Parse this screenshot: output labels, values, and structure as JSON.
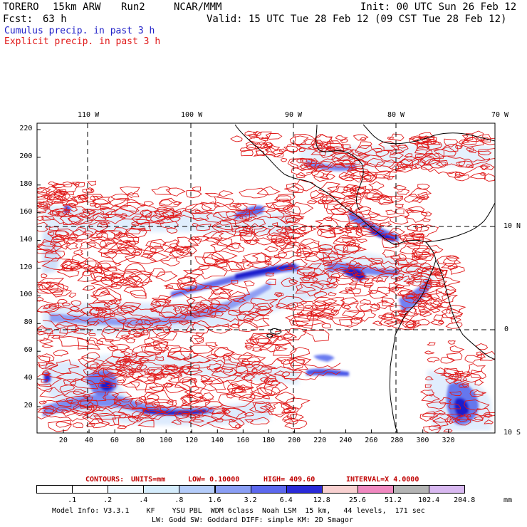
{
  "header": {
    "model": "TORERO",
    "resolution": "15km ARW",
    "run": "Run2",
    "org": "NCAR/MMM",
    "init": "Init: 00 UTC Sun 26 Feb 12",
    "fcst_label": "Fcst:",
    "fcst_value": "63 h",
    "valid": "Valid: 15 UTC Tue 28 Feb 12 (09 CST Tue 28 Feb 12)",
    "field1": "Cumulus precip. in past 3 h",
    "field2": "Explicit precip. in past 3 h",
    "field1_color": "#2020c8",
    "field2_color": "#e01818"
  },
  "axes": {
    "top_lon_labels": [
      "110 W",
      "100 W",
      "90 W",
      "80 W",
      "70 W"
    ],
    "right_lat_labels": [
      "10 N",
      "0",
      "10 S"
    ],
    "left_ticks": [
      "220",
      "200",
      "180",
      "160",
      "140",
      "120",
      "100",
      "80",
      "60",
      "40",
      "20"
    ],
    "bottom_ticks": [
      "20",
      "40",
      "60",
      "80",
      "100",
      "120",
      "140",
      "160",
      "180",
      "200",
      "220",
      "240",
      "260",
      "280",
      "300",
      "320"
    ]
  },
  "contours_info": {
    "label": "CONTOURS:",
    "units": "UNITS=mm",
    "low": "LOW= 0.10000",
    "high": "HIGH= 409.60",
    "interval": "INTERVAL=X 4.0000"
  },
  "colorbar": {
    "unit": "mm",
    "labels": [
      ".1",
      ".2",
      ".4",
      ".8",
      "1.6",
      "3.2",
      "6.4",
      "12.8",
      "25.6",
      "51.2",
      "102.4",
      "204.8"
    ],
    "colors": [
      "#ffffff",
      "#ffffff",
      "#eef8ff",
      "#d4ecfc",
      "#b4ccfa",
      "#8a9ef4",
      "#5c68ee",
      "#2a2ad8",
      "#f8d0d0",
      "#f088c0",
      "#b4b4b4",
      "#d8b8f0"
    ]
  },
  "footer": {
    "line1": "Model Info: V3.3.1    KF    YSU PBL  WDM 6class  Noah LSM  15 km,   44 levels,  171 sec",
    "line2": "LW: Godd SW: Goddard DIFF: simple KM: 2D Smagor"
  }
}
